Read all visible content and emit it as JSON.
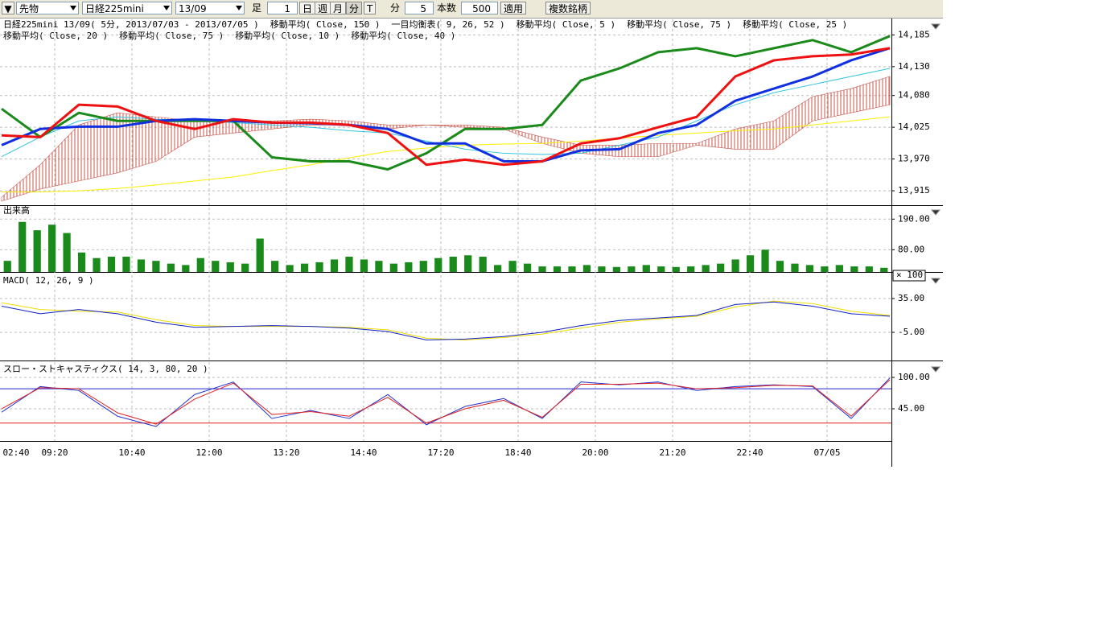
{
  "toolbar": {
    "market": "先物",
    "symbol": "日経225mini",
    "contract": "13/09",
    "bar_label": "足",
    "bar_count": "1",
    "day": "日",
    "week": "週",
    "month": "月",
    "minute": "分",
    "tick": "T",
    "unit": "分",
    "interval": "5",
    "count_label": "本数",
    "count": "500",
    "apply": "適用",
    "multi": "複数銘柄"
  },
  "legend": {
    "line1": [
      "日経225mini 13/09( 5分, 2013/07/03 - 2013/07/05 )",
      "移動平均( Close, 150 )",
      "一目均衡表( 9, 26, 52 )",
      "移動平均( Close, 5 )",
      "移動平均( Close, 75 )",
      "移動平均( Close, 25 )"
    ],
    "line2": [
      "移動平均( Close, 20 )",
      "移動平均( Close, 75 )",
      "移動平均( Close, 10 )",
      "移動平均( Close, 40 )"
    ]
  },
  "times": [
    "02:40",
    "09:20",
    "10:40",
    "12:00",
    "13:20",
    "14:40",
    "17:20",
    "18:40",
    "20:00",
    "21:20",
    "22:40",
    "07/05"
  ],
  "chart_data": [
    {
      "type": "line",
      "name": "price",
      "ylim": [
        13890,
        14212
      ],
      "yticks": [
        {
          "value": 14185,
          "label": "14,185"
        },
        {
          "value": 14130,
          "label": "14,130"
        },
        {
          "value": 14080,
          "label": "14,080"
        },
        {
          "value": 14025,
          "label": "14,025"
        },
        {
          "value": 13970,
          "label": "13,970"
        },
        {
          "value": 13915,
          "label": "13,915"
        }
      ],
      "cloud": {
        "span_a": [
          13904,
          13960,
          14029,
          14050,
          14043,
          14036,
          14036,
          14036,
          14039,
          14036,
          14029,
          14029,
          14029,
          14025,
          14008,
          13994,
          13994,
          13997,
          13997,
          14022,
          14036,
          14078,
          14092,
          14113
        ],
        "span_b": [
          13897,
          13918,
          13932,
          13946,
          13966,
          14008,
          14015,
          14022,
          14029,
          14029,
          14022,
          14029,
          14025,
          14022,
          13997,
          13980,
          13974,
          13974,
          13994,
          13987,
          13987,
          14036,
          14050,
          14064
        ],
        "color": "#c0392b"
      },
      "series": [
        {
          "color": "#ffee00",
          "width": 1,
          "values": [
            13913,
            13913,
            13915,
            13919,
            13925,
            13932,
            13939,
            13950,
            13960,
            13972,
            13983,
            13989,
            13994,
            13996,
            13997,
            14001,
            14006,
            14011,
            14015,
            14019,
            14022,
            14029,
            14036,
            14043
          ]
        },
        {
          "color": "#33c4e0",
          "width": 1,
          "values": [
            13974,
            14008,
            14036,
            14043,
            14039,
            14036,
            14033,
            14029,
            14025,
            14019,
            14015,
            14001,
            13987,
            13980,
            13978,
            13980,
            13994,
            14008,
            14036,
            14064,
            14085,
            14099,
            14113,
            14127
          ]
        },
        {
          "color": "#1a8a1a",
          "width": 3,
          "values": [
            14057,
            14008,
            14050,
            14036,
            14036,
            14036,
            14036,
            13973,
            13966,
            13966,
            13952,
            13980,
            14022,
            14022,
            14029,
            14106,
            14127,
            14155,
            14162,
            14148,
            14162,
            14176,
            14155,
            14183
          ]
        },
        {
          "color": "#1030e0",
          "width": 3,
          "values": [
            13994,
            14022,
            14026,
            14026,
            14036,
            14039,
            14036,
            14033,
            14032,
            14029,
            14022,
            13997,
            13997,
            13966,
            13966,
            13985,
            13987,
            14015,
            14029,
            14071,
            14092,
            14113,
            14141,
            14162
          ]
        },
        {
          "color": "#ee1111",
          "width": 3,
          "values": [
            14011,
            14008,
            14064,
            14061,
            14036,
            14022,
            14039,
            14033,
            14033,
            14029,
            14015,
            13960,
            13969,
            13960,
            13966,
            13997,
            14006,
            14025,
            14043,
            14113,
            14141,
            14148,
            14151,
            14162
          ]
        }
      ]
    },
    {
      "type": "bar",
      "name": "volume",
      "title": "出来高",
      "unit_label": "× 100",
      "ylim": [
        0,
        240
      ],
      "yticks": [
        {
          "value": 190,
          "label": "190.00"
        },
        {
          "value": 80,
          "label": "80.00"
        }
      ],
      "color": "#1a8a1a",
      "values": [
        40,
        180,
        150,
        170,
        140,
        70,
        50,
        55,
        55,
        45,
        40,
        30,
        25,
        50,
        40,
        35,
        30,
        120,
        40,
        25,
        30,
        35,
        45,
        55,
        45,
        40,
        30,
        35,
        40,
        50,
        55,
        60,
        55,
        25,
        40,
        30,
        20,
        20,
        20,
        25,
        20,
        18,
        20,
        25,
        20,
        18,
        20,
        25,
        30,
        45,
        60,
        80,
        40,
        30,
        25,
        20,
        25,
        20,
        20,
        15
      ]
    },
    {
      "type": "line",
      "name": "macd",
      "title": "MACD( 12, 26, 9 )",
      "ylim": [
        -38.3,
        64.5
      ],
      "yticks": [
        {
          "value": 35,
          "label": "35.00"
        },
        {
          "value": -5,
          "label": "-5.00"
        }
      ],
      "series": [
        {
          "color": "#eedd00",
          "width": 1,
          "values": [
            30,
            22,
            20,
            19,
            10,
            3,
            2,
            2,
            2,
            1,
            -2,
            -12,
            -14,
            -11,
            -7,
            0,
            7,
            11,
            14,
            25,
            32,
            29,
            20,
            15
          ]
        },
        {
          "color": "#1020c0",
          "width": 1,
          "values": [
            26,
            17,
            22,
            17,
            7,
            1,
            2,
            3,
            2,
            0,
            -4,
            -14,
            -13,
            -10,
            -5,
            3,
            9,
            12,
            15,
            28,
            31,
            26,
            17,
            14
          ]
        }
      ]
    },
    {
      "type": "line",
      "name": "stochastics",
      "title": "スロー・ストキャスティクス( 14, 3, 80, 20 )",
      "ylim": [
        -11.4,
        126.8
      ],
      "yticks": [
        {
          "value": 100,
          "label": "100.00"
        },
        {
          "value": 45,
          "label": "45.00"
        }
      ],
      "levels": [
        {
          "value": 80,
          "color": "#2020d0"
        },
        {
          "value": 20,
          "color": "#e02020"
        }
      ],
      "series": [
        {
          "color": "#2030d0",
          "width": 1,
          "values": [
            39,
            84,
            77,
            32,
            14,
            70,
            92,
            28,
            42,
            28,
            70,
            17,
            49,
            63,
            28,
            92,
            87,
            92,
            77,
            84,
            87,
            84,
            28,
            99
          ]
        },
        {
          "color": "#e02020",
          "width": 1,
          "values": [
            45,
            82,
            80,
            38,
            18,
            62,
            90,
            35,
            40,
            32,
            65,
            20,
            45,
            60,
            30,
            88,
            88,
            90,
            80,
            82,
            86,
            85,
            32,
            96
          ]
        }
      ]
    }
  ]
}
